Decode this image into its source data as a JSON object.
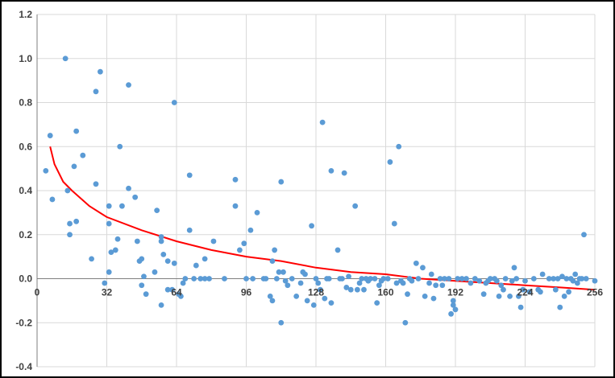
{
  "chart_data": {
    "type": "scatter",
    "title": "",
    "xlabel": "",
    "ylabel": "",
    "xlim": [
      0,
      256
    ],
    "ylim": [
      -0.4,
      1.2
    ],
    "x_ticks": [
      0,
      32,
      64,
      96,
      128,
      160,
      192,
      224,
      256
    ],
    "x_tick_labels": [
      "0",
      "32",
      "64",
      "96",
      "128",
      "160",
      "192",
      "224",
      "256"
    ],
    "y_ticks": [
      -0.4,
      -0.2,
      0.0,
      0.2,
      0.4,
      0.6,
      0.8,
      1.0,
      1.2
    ],
    "y_tick_labels": [
      "-0.4",
      "-0.2",
      "0.0",
      "0.2",
      "0.4",
      "0.6",
      "0.8",
      "1.0",
      "1.2"
    ],
    "grid": "major-both",
    "legend": "none",
    "colors": {
      "points": "#5B9BD5",
      "trendline": "#FF0000",
      "grid": "#D9D9D9",
      "axis": "#7F7F7F"
    },
    "series": [
      {
        "kind": "points",
        "points": [
          [
            4,
            0.49
          ],
          [
            6,
            0.65
          ],
          [
            7,
            0.36
          ],
          [
            13,
            1.0
          ],
          [
            14,
            0.4
          ],
          [
            15,
            0.2
          ],
          [
            15,
            0.25
          ],
          [
            17,
            0.51
          ],
          [
            18,
            0.67
          ],
          [
            18,
            0.26
          ],
          [
            21,
            0.56
          ],
          [
            25,
            0.09
          ],
          [
            27,
            0.85
          ],
          [
            27,
            0.43
          ],
          [
            29,
            0.94
          ],
          [
            31,
            -0.02
          ],
          [
            33,
            0.33
          ],
          [
            33,
            0.25
          ],
          [
            33,
            0.03
          ],
          [
            34,
            0.12
          ],
          [
            36,
            0.13
          ],
          [
            37,
            0.18
          ],
          [
            38,
            0.6
          ],
          [
            39,
            0.33
          ],
          [
            42,
            0.88
          ],
          [
            42,
            0.41
          ],
          [
            45,
            0.37
          ],
          [
            46,
            0.17
          ],
          [
            47,
            0.08
          ],
          [
            48,
            0.09
          ],
          [
            48,
            -0.03
          ],
          [
            49,
            0.01
          ],
          [
            50,
            -0.07
          ],
          [
            54,
            0.03
          ],
          [
            55,
            0.31
          ],
          [
            57,
            0.19
          ],
          [
            57,
            0.17
          ],
          [
            57,
            -0.12
          ],
          [
            58,
            0.11
          ],
          [
            60,
            0.08
          ],
          [
            60,
            -0.05
          ],
          [
            62,
            -0.05
          ],
          [
            63,
            0.8
          ],
          [
            63,
            0.07
          ],
          [
            65,
            -0.07
          ],
          [
            66,
            -0.08
          ],
          [
            67,
            -0.02
          ],
          [
            68,
            0.0
          ],
          [
            70,
            0.47
          ],
          [
            70,
            0.22
          ],
          [
            72,
            0.0
          ],
          [
            73,
            0.06
          ],
          [
            75,
            0.0
          ],
          [
            77,
            0.09
          ],
          [
            77,
            0.0
          ],
          [
            79,
            0.0
          ],
          [
            81,
            0.17
          ],
          [
            86,
            0.0
          ],
          [
            91,
            0.45
          ],
          [
            91,
            0.33
          ],
          [
            93,
            0.13
          ],
          [
            95,
            0.16
          ],
          [
            96,
            0.0
          ],
          [
            98,
            0.22
          ],
          [
            99,
            0.0
          ],
          [
            101,
            0.3
          ],
          [
            104,
            0.0
          ],
          [
            105,
            0.0
          ],
          [
            107,
            -0.08
          ],
          [
            108,
            -0.1
          ],
          [
            108,
            0.08
          ],
          [
            109,
            0.13
          ],
          [
            110,
            0.0
          ],
          [
            111,
            0.03
          ],
          [
            112,
            0.44
          ],
          [
            112,
            -0.2
          ],
          [
            113,
            0.03
          ],
          [
            114,
            -0.01
          ],
          [
            115,
            -0.03
          ],
          [
            117,
            0.0
          ],
          [
            119,
            -0.08
          ],
          [
            121,
            -0.02
          ],
          [
            122,
            0.03
          ],
          [
            123,
            0.02
          ],
          [
            124,
            -0.1
          ],
          [
            126,
            0.24
          ],
          [
            127,
            -0.12
          ],
          [
            128,
            0.0
          ],
          [
            129,
            -0.02
          ],
          [
            130,
            -0.05
          ],
          [
            131,
            0.71
          ],
          [
            132,
            -0.09
          ],
          [
            133,
            0.0
          ],
          [
            134,
            0.0
          ],
          [
            135,
            0.49
          ],
          [
            135,
            -0.11
          ],
          [
            138,
            0.13
          ],
          [
            139,
            0.0
          ],
          [
            140,
            0.0
          ],
          [
            141,
            0.48
          ],
          [
            142,
            -0.04
          ],
          [
            143,
            0.01
          ],
          [
            144,
            -0.05
          ],
          [
            146,
            0.33
          ],
          [
            147,
            -0.05
          ],
          [
            148,
            -0.02
          ],
          [
            149,
            0.0
          ],
          [
            150,
            -0.05
          ],
          [
            151,
            0.0
          ],
          [
            152,
            -0.01
          ],
          [
            153,
            0.0
          ],
          [
            155,
            0.0
          ],
          [
            156,
            -0.11
          ],
          [
            157,
            -0.03
          ],
          [
            158,
            -0.01
          ],
          [
            159,
            0.0
          ],
          [
            161,
            0.0
          ],
          [
            162,
            0.53
          ],
          [
            164,
            0.25
          ],
          [
            165,
            -0.02
          ],
          [
            166,
            0.6
          ],
          [
            167,
            -0.01
          ],
          [
            168,
            -0.02
          ],
          [
            169,
            -0.2
          ],
          [
            170,
            -0.07
          ],
          [
            171,
            0.0
          ],
          [
            172,
            -0.01
          ],
          [
            174,
            0.07
          ],
          [
            175,
            0.0
          ],
          [
            177,
            0.05
          ],
          [
            178,
            -0.08
          ],
          [
            180,
            -0.02
          ],
          [
            181,
            0.02
          ],
          [
            182,
            -0.09
          ],
          [
            183,
            -0.03
          ],
          [
            185,
            0.0
          ],
          [
            186,
            -0.03
          ],
          [
            187,
            0.0
          ],
          [
            189,
            0.0
          ],
          [
            190,
            -0.16
          ],
          [
            191,
            -0.12
          ],
          [
            191,
            -0.1
          ],
          [
            192,
            -0.14
          ],
          [
            193,
            0.0
          ],
          [
            195,
            0.0
          ],
          [
            197,
            0.0
          ],
          [
            199,
            -0.02
          ],
          [
            201,
            0.0
          ],
          [
            203,
            -0.01
          ],
          [
            205,
            -0.07
          ],
          [
            206,
            -0.02
          ],
          [
            207,
            -0.01
          ],
          [
            208,
            0.0
          ],
          [
            210,
            0.0
          ],
          [
            211,
            -0.01
          ],
          [
            212,
            -0.08
          ],
          [
            213,
            -0.03
          ],
          [
            214,
            -0.05
          ],
          [
            215,
            0.0
          ],
          [
            217,
            -0.08
          ],
          [
            218,
            -0.01
          ],
          [
            219,
            0.05
          ],
          [
            220,
            0.0
          ],
          [
            221,
            -0.08
          ],
          [
            222,
            -0.13
          ],
          [
            223,
            -0.05
          ],
          [
            224,
            -0.01
          ],
          [
            226,
            -0.06
          ],
          [
            228,
            0.0
          ],
          [
            230,
            -0.05
          ],
          [
            231,
            -0.06
          ],
          [
            232,
            0.02
          ],
          [
            235,
            0.0
          ],
          [
            237,
            0.0
          ],
          [
            238,
            -0.05
          ],
          [
            239,
            0.0
          ],
          [
            240,
            -0.13
          ],
          [
            241,
            0.01
          ],
          [
            242,
            -0.08
          ],
          [
            243,
            0.0
          ],
          [
            244,
            -0.06
          ],
          [
            245,
            0.0
          ],
          [
            246,
            -0.01
          ],
          [
            247,
            0.02
          ],
          [
            248,
            -0.02
          ],
          [
            249,
            0.0
          ],
          [
            250,
            0.0
          ],
          [
            251,
            0.2
          ],
          [
            252,
            0.0
          ],
          [
            256,
            -0.01
          ]
        ]
      },
      {
        "kind": "trendline",
        "points": [
          [
            6,
            0.6
          ],
          [
            8,
            0.52
          ],
          [
            12,
            0.44
          ],
          [
            16,
            0.4
          ],
          [
            24,
            0.33
          ],
          [
            32,
            0.28
          ],
          [
            48,
            0.22
          ],
          [
            64,
            0.17
          ],
          [
            80,
            0.13
          ],
          [
            96,
            0.1
          ],
          [
            112,
            0.08
          ],
          [
            128,
            0.05
          ],
          [
            144,
            0.03
          ],
          [
            160,
            0.02
          ],
          [
            176,
            0.0
          ],
          [
            192,
            -0.01
          ],
          [
            208,
            -0.02
          ],
          [
            224,
            -0.03
          ],
          [
            240,
            -0.04
          ],
          [
            256,
            -0.05
          ]
        ]
      }
    ]
  }
}
